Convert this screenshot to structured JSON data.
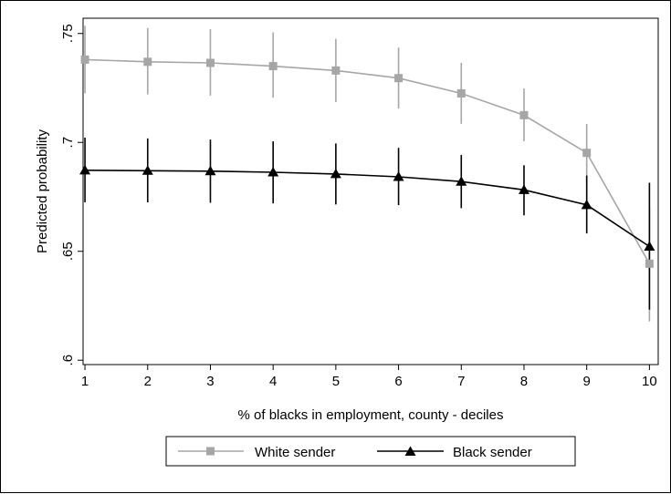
{
  "chart_data": {
    "type": "line",
    "title": "",
    "xlabel": "% of blacks in employment, county - deciles",
    "ylabel": "Predicted probability",
    "x": [
      1,
      2,
      3,
      4,
      5,
      6,
      7,
      8,
      9,
      10
    ],
    "x_tick_labels": [
      "1",
      "2",
      "3",
      "4",
      "5",
      "6",
      "7",
      "8",
      "9",
      "10"
    ],
    "xlim": [
      0.97,
      10.14
    ],
    "ylim": [
      0.598,
      0.757
    ],
    "y_ticks": [
      0.6,
      0.65,
      0.7,
      0.75
    ],
    "y_tick_labels": [
      ".6",
      ".65",
      ".7",
      ".75"
    ],
    "grid": false,
    "legend_position": "bottom",
    "series": [
      {
        "name": "White sender",
        "color": "#a6a6a6",
        "marker": "square",
        "values": [
          0.738,
          0.737,
          0.7365,
          0.735,
          0.733,
          0.7295,
          0.7225,
          0.7125,
          0.6952,
          0.6443
        ],
        "ci_low": [
          0.7225,
          0.722,
          0.7215,
          0.7205,
          0.7185,
          0.7155,
          0.7085,
          0.7005,
          0.6815,
          0.6178
        ],
        "ci_high": [
          0.7535,
          0.7525,
          0.752,
          0.7505,
          0.7475,
          0.7435,
          0.7365,
          0.7248,
          0.7085,
          0.6705
        ]
      },
      {
        "name": "Black sender",
        "color": "#000000",
        "marker": "triangle",
        "values": [
          0.6872,
          0.687,
          0.6868,
          0.6863,
          0.6855,
          0.6842,
          0.682,
          0.6782,
          0.6713,
          0.6522
        ],
        "ci_low": [
          0.6725,
          0.6725,
          0.6723,
          0.672,
          0.6715,
          0.6712,
          0.6698,
          0.6665,
          0.6582,
          0.6232
        ],
        "ci_high": [
          0.7022,
          0.7018,
          0.7013,
          0.7005,
          0.6995,
          0.6975,
          0.6942,
          0.6895,
          0.6848,
          0.6815
        ]
      }
    ]
  }
}
